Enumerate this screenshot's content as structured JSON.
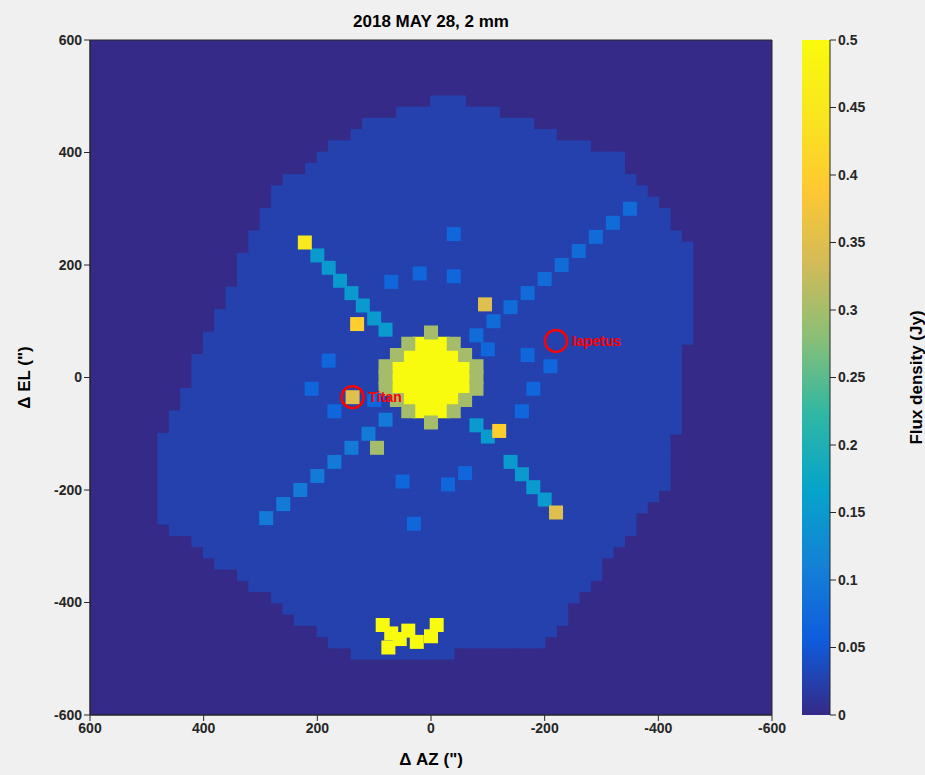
{
  "chart_data": {
    "type": "heatmap",
    "title": "2018 MAY 28, 2 mm",
    "x_label": "Δ AZ (\")",
    "y_label": "Δ EL (\")",
    "xlim": [
      600,
      -600
    ],
    "xticks": [
      600,
      400,
      200,
      0,
      -200,
      -400,
      -600
    ],
    "ylim": [
      -600,
      600
    ],
    "yticks": [
      -600,
      -400,
      -200,
      0,
      200,
      400,
      600
    ],
    "background": 0,
    "colorbar": {
      "label": "Flux density (Jy)",
      "range": [
        0,
        0.5
      ],
      "ticks": [
        0,
        0.05,
        0.1,
        0.15,
        0.2,
        0.25,
        0.3,
        0.35,
        0.4,
        0.45,
        0.5
      ]
    },
    "regions": [
      {
        "value": 0.025,
        "corners": [
          [
            -40,
            500
          ],
          [
            -330,
            390
          ],
          [
            -470,
            220
          ],
          [
            -420,
            -180
          ],
          [
            -200,
            -470
          ],
          [
            120,
            -510
          ],
          [
            470,
            -260
          ],
          [
            480,
            -130
          ],
          [
            280,
            330
          ],
          [
            120,
            450
          ]
        ]
      }
    ],
    "cells": [
      [
        -20,
        60,
        0.5
      ],
      [
        0,
        60,
        0.5
      ],
      [
        20,
        60,
        0.5
      ],
      [
        -40,
        40,
        0.5
      ],
      [
        -20,
        40,
        0.5
      ],
      [
        0,
        40,
        0.5
      ],
      [
        20,
        40,
        0.5
      ],
      [
        40,
        40,
        0.5
      ],
      [
        -60,
        20,
        0.5
      ],
      [
        -40,
        20,
        0.5
      ],
      [
        -20,
        20,
        0.5
      ],
      [
        0,
        20,
        0.5
      ],
      [
        20,
        20,
        0.5
      ],
      [
        40,
        20,
        0.5
      ],
      [
        60,
        20,
        0.5
      ],
      [
        -60,
        0,
        0.5
      ],
      [
        -40,
        0,
        0.5
      ],
      [
        -20,
        0,
        0.5
      ],
      [
        0,
        0,
        0.5
      ],
      [
        20,
        0,
        0.5
      ],
      [
        40,
        0,
        0.5
      ],
      [
        60,
        0,
        0.5
      ],
      [
        -60,
        -20,
        0.5
      ],
      [
        -40,
        -20,
        0.5
      ],
      [
        -20,
        -20,
        0.5
      ],
      [
        0,
        -20,
        0.5
      ],
      [
        20,
        -20,
        0.5
      ],
      [
        40,
        -20,
        0.5
      ],
      [
        60,
        -20,
        0.5
      ],
      [
        -40,
        -40,
        0.5
      ],
      [
        -20,
        -40,
        0.5
      ],
      [
        0,
        -40,
        0.5
      ],
      [
        20,
        -40,
        0.5
      ],
      [
        40,
        -40,
        0.5
      ],
      [
        -20,
        -60,
        0.5
      ],
      [
        0,
        -60,
        0.5
      ],
      [
        20,
        -60,
        0.5
      ],
      [
        -40,
        60,
        0.3
      ],
      [
        40,
        60,
        0.3
      ],
      [
        -60,
        40,
        0.3
      ],
      [
        60,
        40,
        0.3
      ],
      [
        -80,
        20,
        0.3
      ],
      [
        80,
        20,
        0.3
      ],
      [
        -80,
        -20,
        0.3
      ],
      [
        80,
        -20,
        0.3
      ],
      [
        -60,
        -40,
        0.3
      ],
      [
        60,
        -40,
        0.3
      ],
      [
        -40,
        -60,
        0.3
      ],
      [
        40,
        -60,
        0.3
      ],
      [
        0,
        80,
        0.3
      ],
      [
        0,
        -80,
        0.3
      ],
      [
        -80,
        0,
        0.3
      ],
      [
        80,
        0,
        0.3
      ],
      [
        80,
        85,
        0.15
      ],
      [
        100,
        105,
        0.15
      ],
      [
        120,
        128,
        0.15
      ],
      [
        140,
        150,
        0.15
      ],
      [
        160,
        172,
        0.15
      ],
      [
        180,
        195,
        0.15
      ],
      [
        200,
        217,
        0.15
      ],
      [
        222,
        240,
        0.45
      ],
      [
        -80,
        -85,
        0.15
      ],
      [
        -100,
        -105,
        0.15
      ],
      [
        -140,
        -150,
        0.15
      ],
      [
        -160,
        -172,
        0.15
      ],
      [
        -180,
        -195,
        0.15
      ],
      [
        -200,
        -217,
        0.15
      ],
      [
        -220,
        -240,
        0.35
      ],
      [
        -80,
        75,
        0.08
      ],
      [
        -110,
        100,
        0.08
      ],
      [
        -140,
        125,
        0.08
      ],
      [
        -170,
        150,
        0.08
      ],
      [
        -200,
        175,
        0.08
      ],
      [
        -230,
        200,
        0.08
      ],
      [
        -260,
        225,
        0.08
      ],
      [
        -290,
        250,
        0.08
      ],
      [
        -320,
        275,
        0.08
      ],
      [
        -350,
        300,
        0.08
      ],
      [
        80,
        -75,
        0.1
      ],
      [
        110,
        -100,
        0.1
      ],
      [
        140,
        -125,
        0.1
      ],
      [
        170,
        -150,
        0.1
      ],
      [
        200,
        -175,
        0.1
      ],
      [
        230,
        -200,
        0.1
      ],
      [
        260,
        -225,
        0.1
      ],
      [
        290,
        -250,
        0.1
      ],
      [
        130,
        95,
        0.4
      ],
      [
        -95,
        130,
        0.35
      ],
      [
        -120,
        -95,
        0.4
      ],
      [
        95,
        -125,
        0.3
      ],
      [
        138,
        -35,
        0.35
      ],
      [
        20,
        185,
        0.07
      ],
      [
        -40,
        180,
        0.07
      ],
      [
        70,
        170,
        0.07
      ],
      [
        -170,
        40,
        0.07
      ],
      [
        -180,
        -20,
        0.07
      ],
      [
        -160,
        -60,
        0.07
      ],
      [
        -30,
        -190,
        0.07
      ],
      [
        50,
        -185,
        0.07
      ],
      [
        170,
        -60,
        0.07
      ],
      [
        180,
        30,
        0.07
      ],
      [
        -60,
        -170,
        0.07
      ],
      [
        -100,
        50,
        0.07
      ],
      [
        100,
        -40,
        0.07
      ],
      [
        210,
        -20,
        0.07
      ],
      [
        -210,
        20,
        0.07
      ],
      [
        30,
        -260,
        0.07
      ],
      [
        -40,
        255,
        0.07
      ],
      [
        85,
        -440,
        0.5
      ],
      [
        70,
        -455,
        0.5
      ],
      [
        55,
        -465,
        0.5
      ],
      [
        40,
        -450,
        0.5
      ],
      [
        25,
        -470,
        0.5
      ],
      [
        0,
        -460,
        0.5
      ],
      [
        -10,
        -440,
        0.5
      ],
      [
        75,
        -480,
        0.5
      ]
    ],
    "annotations": [
      {
        "text": "Titan",
        "x": 138,
        "y": -35,
        "color": "#ff0000"
      },
      {
        "text": "Iapetus",
        "x": -220,
        "y": 65,
        "color": "#ff0000"
      }
    ]
  }
}
